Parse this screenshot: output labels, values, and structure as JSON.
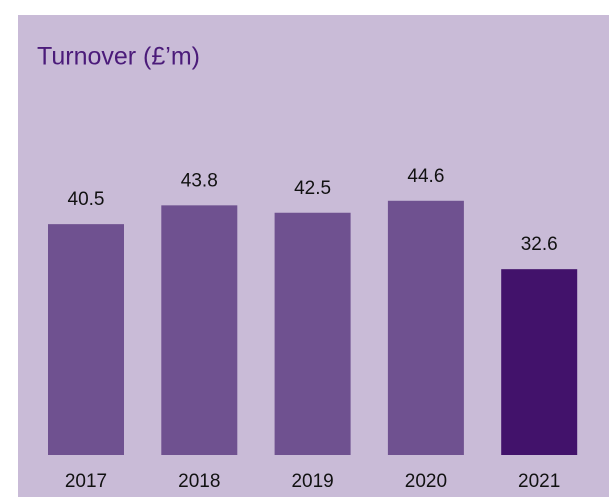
{
  "chart_data": {
    "type": "bar",
    "title": "Turnover (£’m)",
    "categories": [
      "2017",
      "2018",
      "2019",
      "2020",
      "2021"
    ],
    "values": [
      40.5,
      43.8,
      42.5,
      44.6,
      32.6
    ],
    "colors": [
      "#6f5190",
      "#6f5190",
      "#6f5190",
      "#6f5190",
      "#42126b"
    ]
  }
}
